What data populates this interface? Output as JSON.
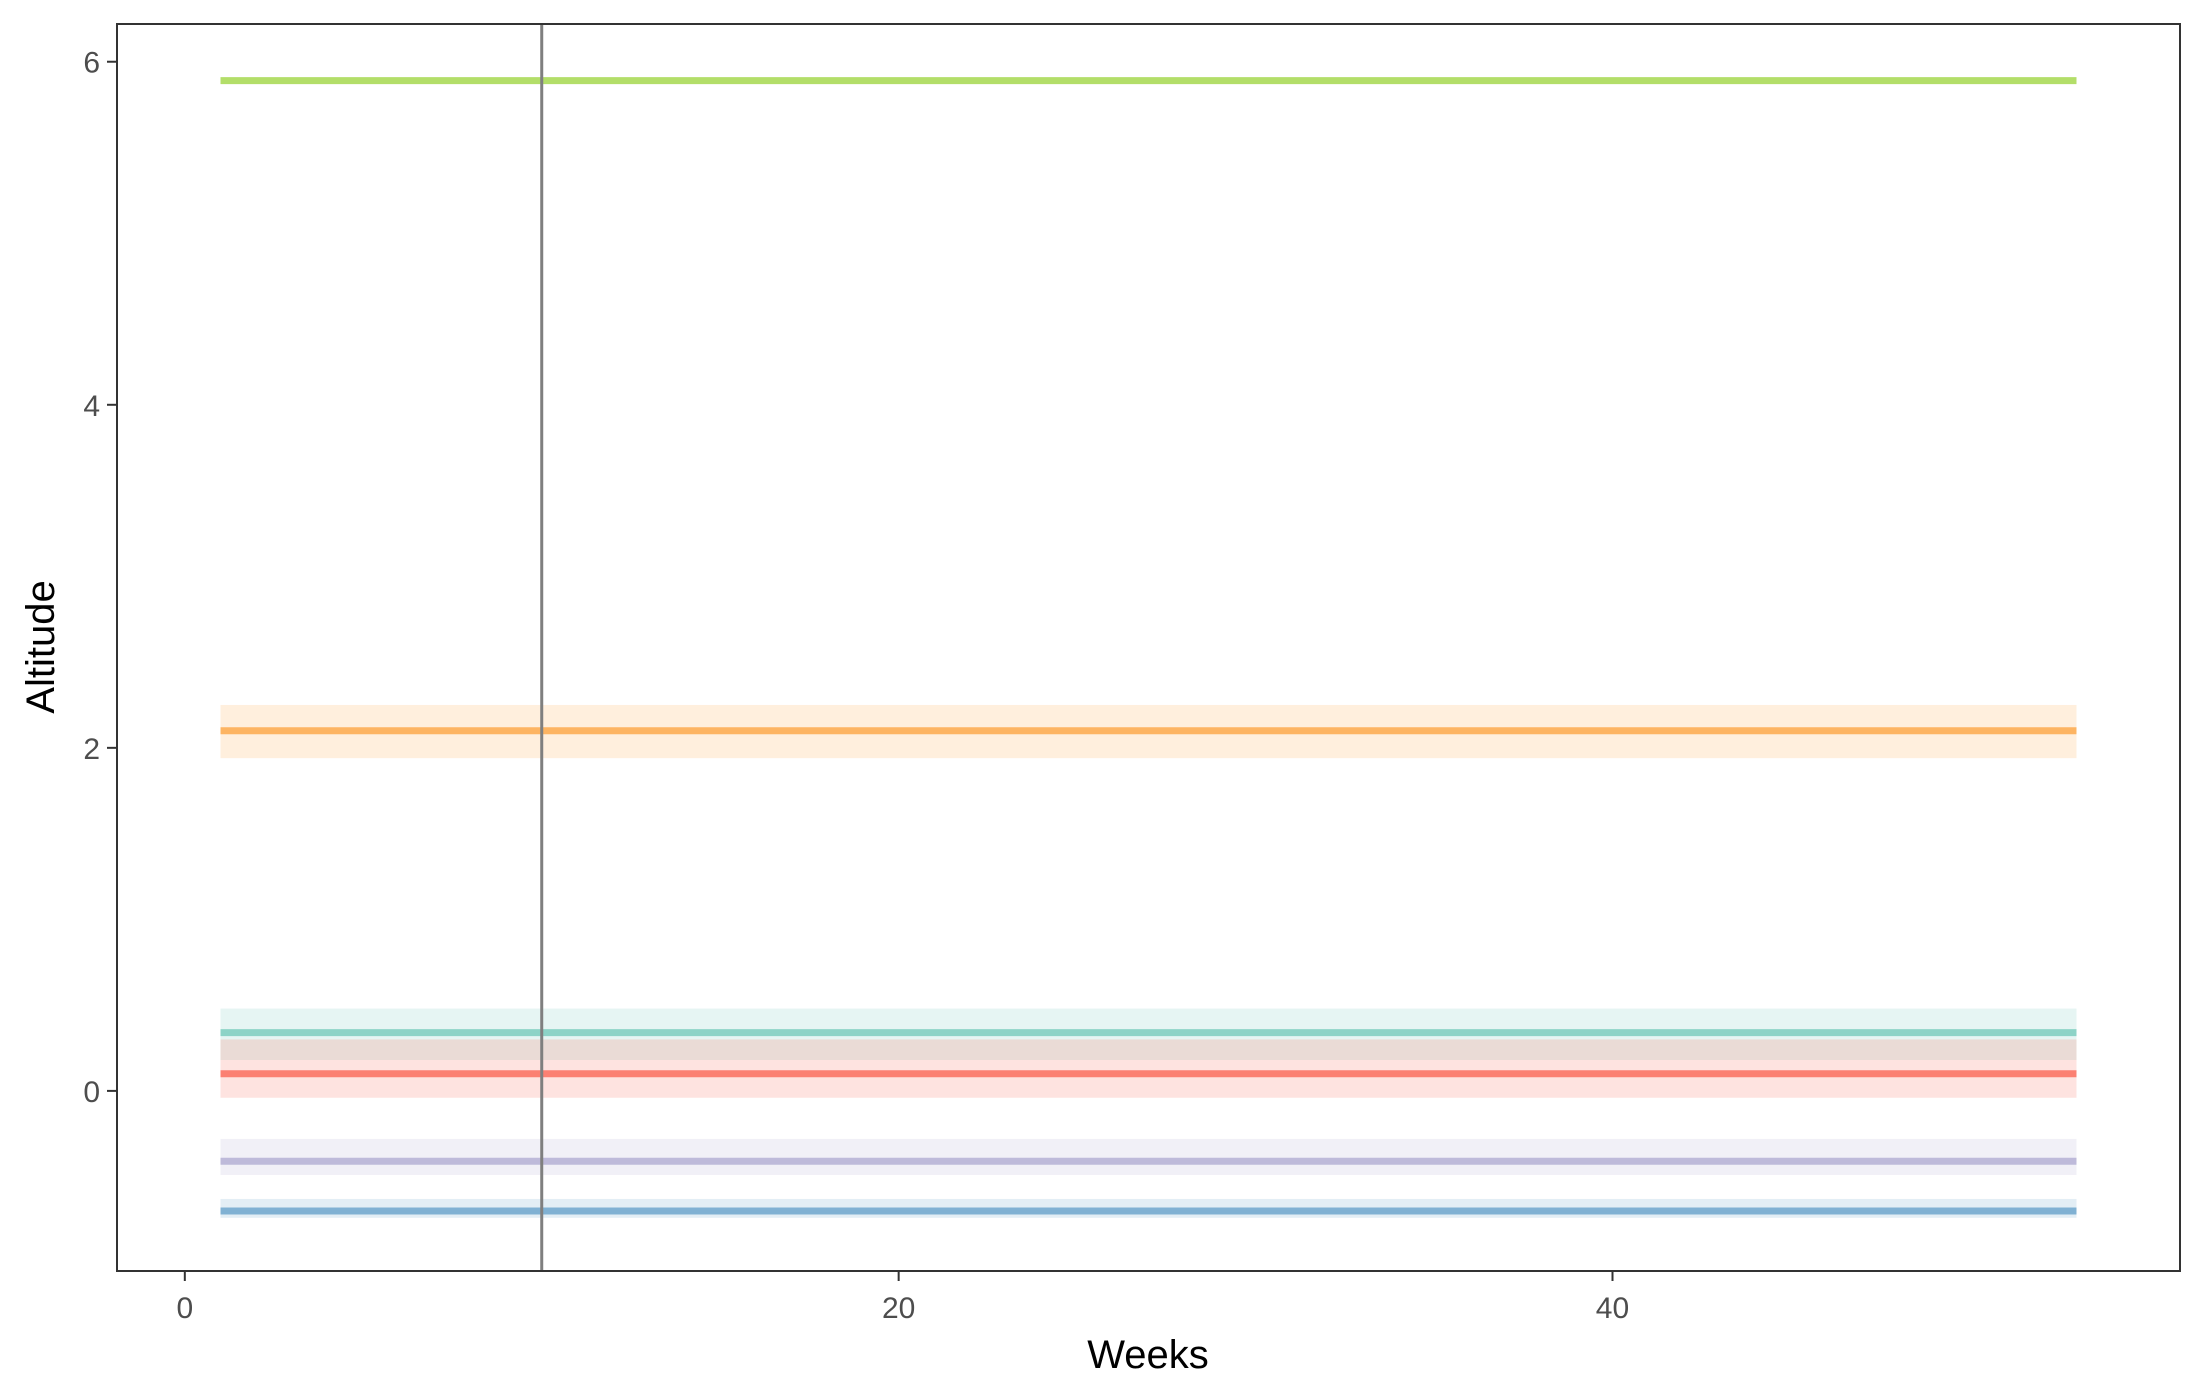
{
  "chart_data": {
    "type": "line",
    "title": "",
    "xlabel": "Weeks",
    "ylabel": "Altitude",
    "xlim": [
      -1.9,
      55.9
    ],
    "ylim": [
      -1.05,
      6.22
    ],
    "x_ticks": [
      0,
      20,
      40
    ],
    "y_ticks": [
      0,
      2,
      4,
      6
    ],
    "x_tick_labels": [
      "0",
      "20",
      "40"
    ],
    "y_tick_labels": [
      "0",
      "2",
      "4",
      "6"
    ],
    "grid": false,
    "legend": "none",
    "vline": {
      "x": 10,
      "color": "#7f7f7f"
    },
    "series": [
      {
        "x": [
          1,
          53
        ],
        "y": [
          5.89,
          5.89
        ],
        "lower": [
          5.89,
          5.89
        ],
        "upper": [
          5.89,
          5.89
        ],
        "color": "#b3de69"
      },
      {
        "x": [
          1,
          53
        ],
        "y": [
          2.1,
          2.1
        ],
        "lower": [
          1.94,
          1.94
        ],
        "upper": [
          2.25,
          2.25
        ],
        "color": "#fdb462"
      },
      {
        "x": [
          1,
          53
        ],
        "y": [
          0.34,
          0.34
        ],
        "lower": [
          0.18,
          0.18
        ],
        "upper": [
          0.48,
          0.48
        ],
        "color": "#8dd3c7"
      },
      {
        "x": [
          1,
          53
        ],
        "y": [
          0.1,
          0.1
        ],
        "lower": [
          -0.04,
          -0.04
        ],
        "upper": [
          0.3,
          0.3
        ],
        "color": "#fb8072"
      },
      {
        "x": [
          1,
          53
        ],
        "y": [
          -0.41,
          -0.41
        ],
        "lower": [
          -0.49,
          -0.49
        ],
        "upper": [
          -0.28,
          -0.28
        ],
        "color": "#bebada"
      },
      {
        "x": [
          1,
          53
        ],
        "y": [
          -0.7,
          -0.7
        ],
        "lower": [
          -0.74,
          -0.74
        ],
        "upper": [
          -0.63,
          -0.63
        ],
        "color": "#80b1d3"
      }
    ]
  }
}
